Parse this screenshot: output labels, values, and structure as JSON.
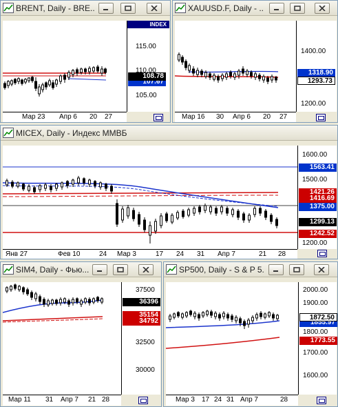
{
  "colors": {
    "bg": "#ece9d8",
    "candle_up": "#ffffff",
    "candle_down": "#000000",
    "ma_blue": "#1a33cc",
    "ma_red": "#d01010",
    "label_red": "#cc0000",
    "label_blue": "#0033cc",
    "label_black": "#000000",
    "index_tag": "#000080"
  },
  "windows": [
    {
      "id": "brent",
      "title": "BRENT, Daily - BRE...",
      "index_tag": "INDEX",
      "y_ticks": [
        "115.00",
        "110.00",
        "105.00"
      ],
      "x_ticks": [
        "Мар 23",
        "Апр 6",
        "20",
        "27"
      ],
      "labels": [
        {
          "text": "108.78",
          "color": "black",
          "arrow": true
        },
        {
          "text": "107.67",
          "color": "blue"
        }
      ]
    },
    {
      "id": "xauusd",
      "title": "XAUUSD.F, Daily - ...",
      "y_ticks": [
        "1400.00",
        "1200.00"
      ],
      "x_ticks": [
        "Мар 16",
        "30",
        "Апр 6",
        "20",
        "27"
      ],
      "labels": [
        {
          "text": "1318.90",
          "color": "blue"
        },
        {
          "text": "1293.73",
          "color": "white",
          "arrow": true
        }
      ]
    },
    {
      "id": "micex",
      "title": "MICEX, Daily - Индекс ММВБ",
      "y_ticks": [
        "1600.00",
        "1500.00",
        "1200.00"
      ],
      "x_ticks": [
        "Янв 27",
        "Фев 10",
        "24",
        "Мар 3",
        "17",
        "24",
        "31",
        "Апр 7",
        "21",
        "28"
      ],
      "labels": [
        {
          "text": "1563.41",
          "color": "blue"
        },
        {
          "text": "1421.26",
          "color": "red"
        },
        {
          "text": "1416.69",
          "color": "red"
        },
        {
          "text": "1375.00",
          "color": "blue"
        },
        {
          "text": "1299.13",
          "color": "black"
        },
        {
          "text": "1242.52",
          "color": "red"
        }
      ]
    },
    {
      "id": "sim4",
      "title": "SIM4, Daily - Фью...",
      "y_ticks": [
        "37500",
        "32500",
        "30000"
      ],
      "x_ticks": [
        "Мар 11",
        "31",
        "Апр 7",
        "21",
        "28"
      ],
      "labels": [
        {
          "text": "36396",
          "color": "black"
        },
        {
          "text": "35154",
          "color": "red"
        },
        {
          "text": "34792",
          "color": "red"
        }
      ]
    },
    {
      "id": "sp500",
      "title": "SP500, Daily - S & P 5...",
      "y_ticks": [
        "2000.00",
        "1900.00",
        "1800.00",
        "1700.00",
        "1600.00"
      ],
      "x_ticks": [
        "Мар 3",
        "17",
        "24",
        "31",
        "Апр 7",
        "28"
      ],
      "labels": [
        {
          "text": "1872.50",
          "color": "white",
          "arrow": true
        },
        {
          "text": "1855.97",
          "color": "blue"
        },
        {
          "text": "1773.55",
          "color": "red"
        }
      ]
    }
  ]
}
